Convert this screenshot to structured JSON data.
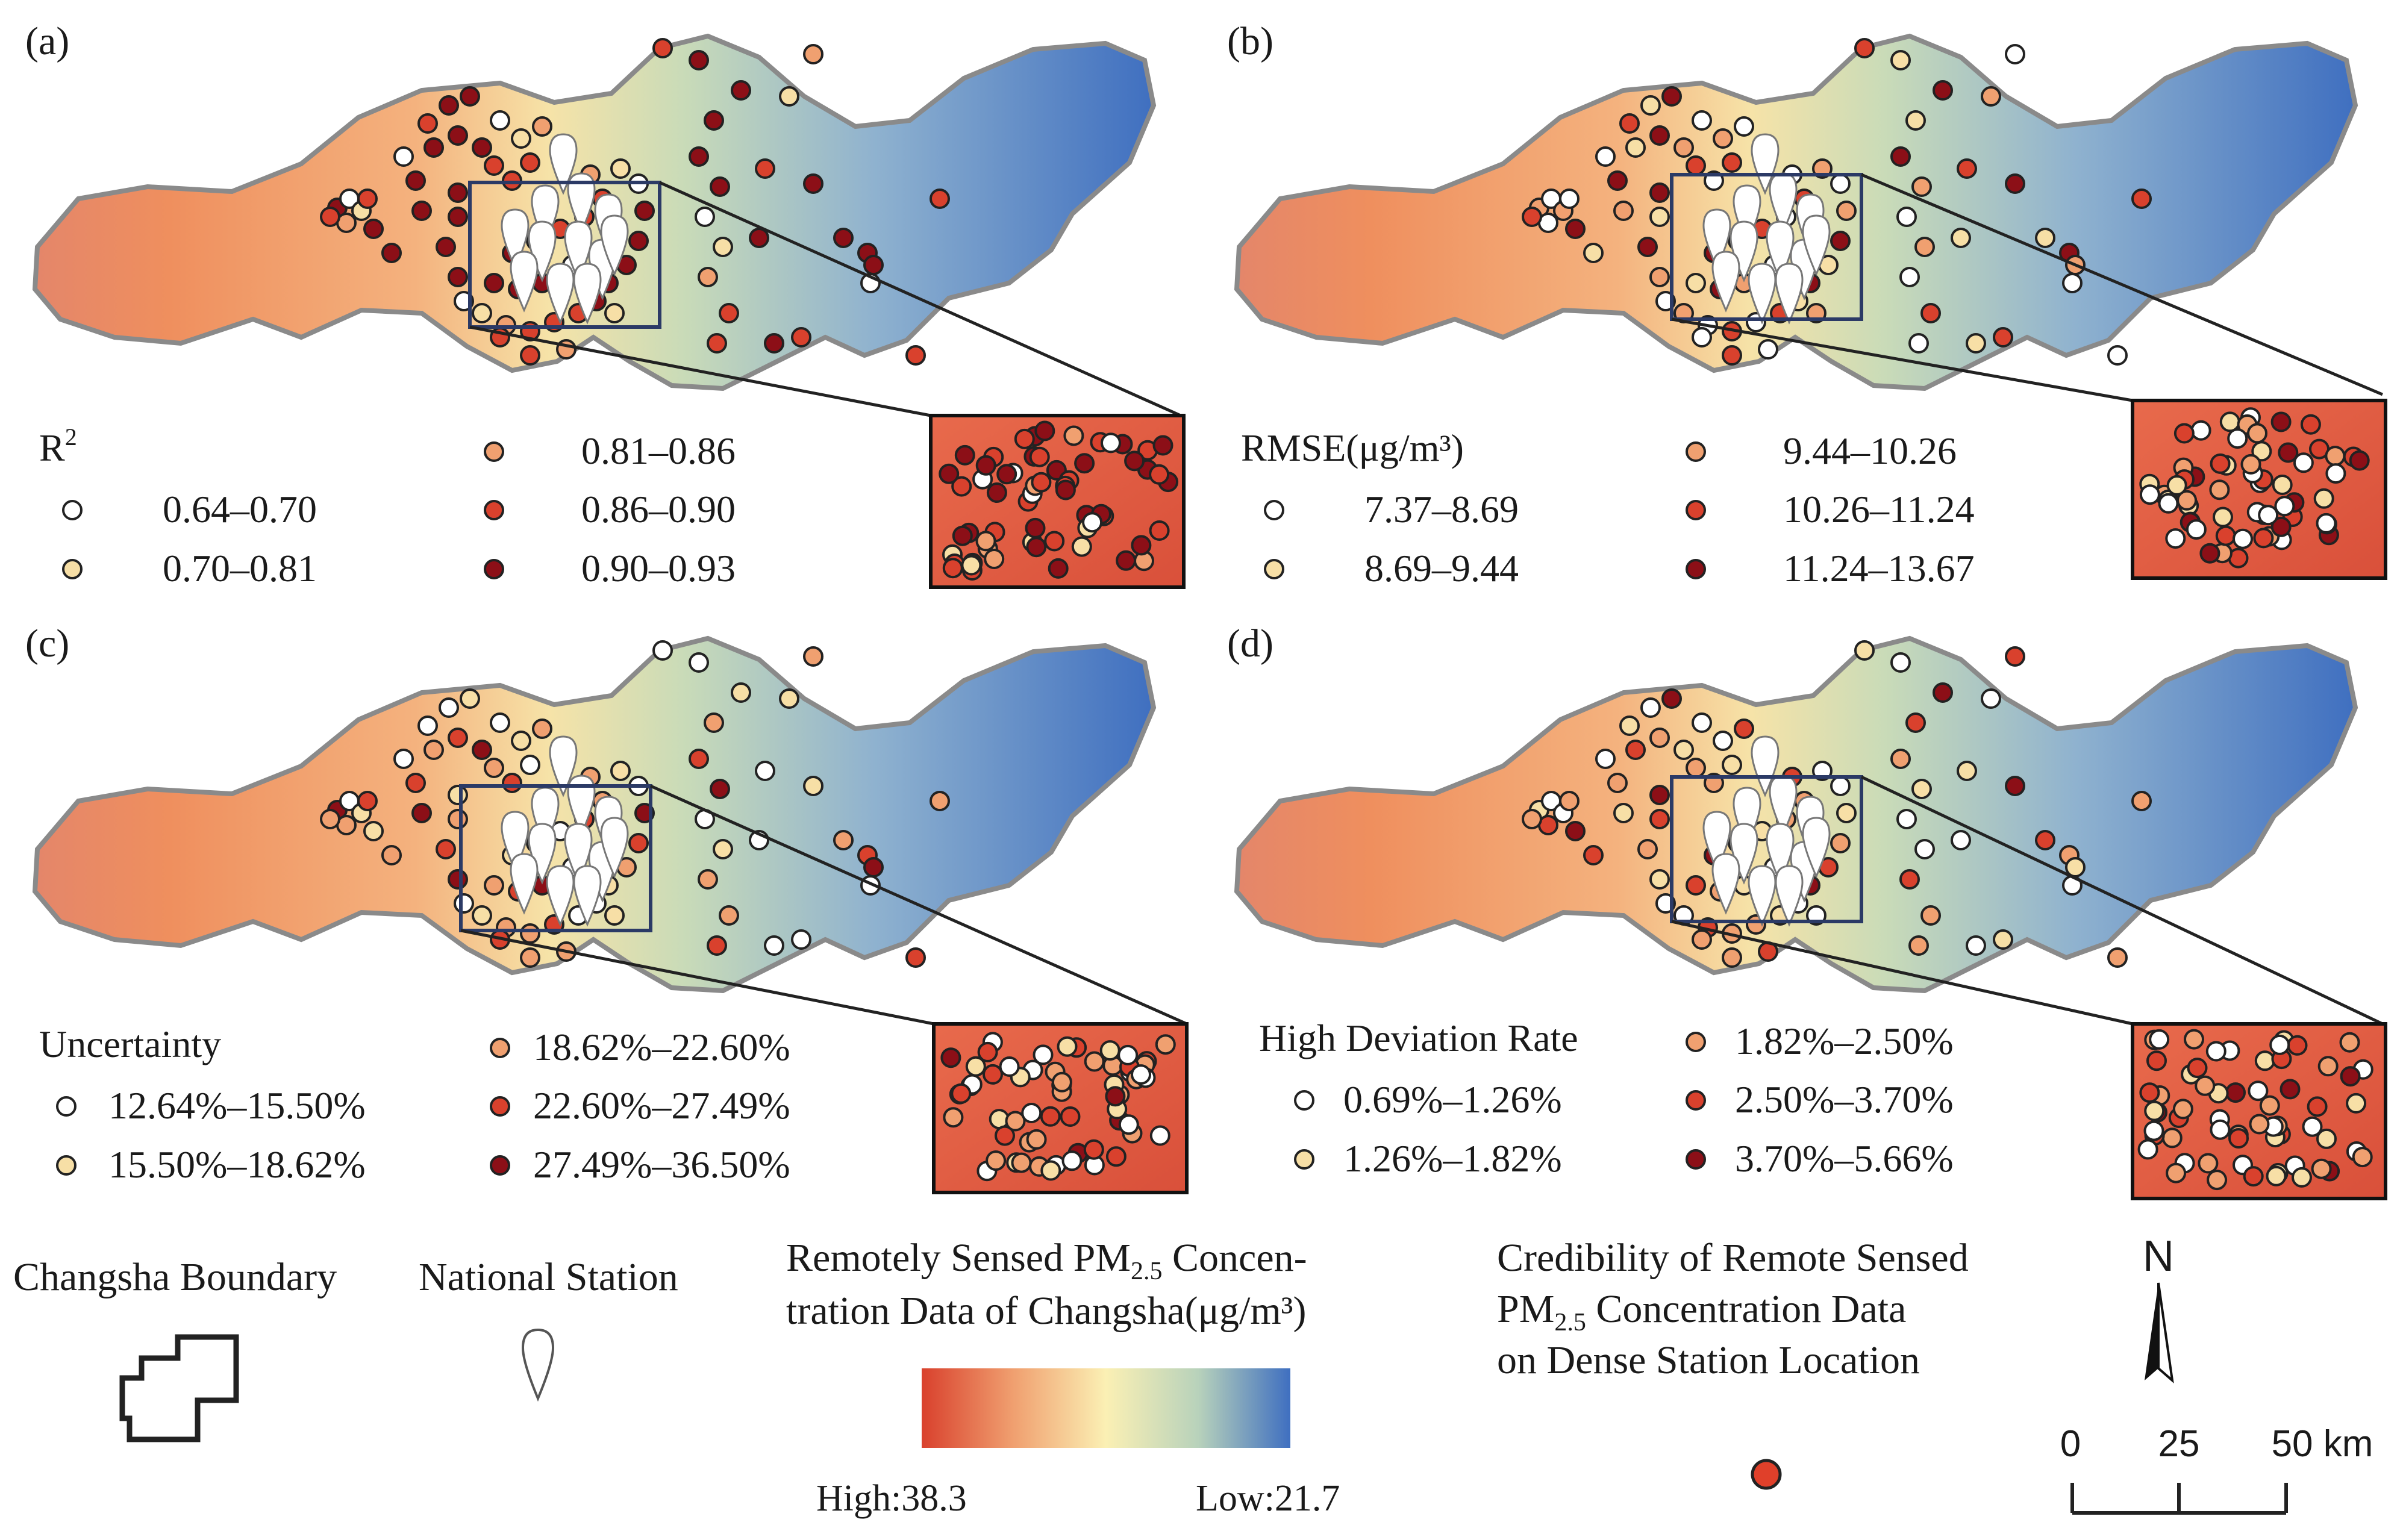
{
  "panels": [
    {
      "label": "(a)",
      "legend_title": "R",
      "legend_title_sup": "2",
      "classes": [
        {
          "label": "0.64–0.70",
          "color": "#ffffff"
        },
        {
          "label": "0.70–0.81",
          "color": "#f7dfa6"
        },
        {
          "label": "0.81–0.86",
          "color": "#f0a070"
        },
        {
          "label": "0.86–0.90",
          "color": "#d9412d"
        },
        {
          "label": "0.90–0.93",
          "color": "#8c0f17"
        }
      ]
    },
    {
      "label": "(b)",
      "legend_title": "RMSE(μg/m³)",
      "legend_title_sup": "",
      "classes": [
        {
          "label": "7.37–8.69",
          "color": "#ffffff"
        },
        {
          "label": "8.69–9.44",
          "color": "#f7dfa6"
        },
        {
          "label": "9.44–10.26",
          "color": "#f0a070"
        },
        {
          "label": "10.26–11.24",
          "color": "#d9412d"
        },
        {
          "label": "11.24–13.67",
          "color": "#8c0f17"
        }
      ]
    },
    {
      "label": "(c)",
      "legend_title": "Uncertainty",
      "legend_title_sup": "",
      "classes": [
        {
          "label": "12.64%–15.50%",
          "color": "#ffffff"
        },
        {
          "label": "15.50%–18.62%",
          "color": "#f7dfa6"
        },
        {
          "label": "18.62%–22.60%",
          "color": "#f0a070"
        },
        {
          "label": "22.60%–27.49%",
          "color": "#d9412d"
        },
        {
          "label": "27.49%–36.50%",
          "color": "#8c0f17"
        }
      ]
    },
    {
      "label": "(d)",
      "legend_title": "High Deviation Rate",
      "legend_title_sup": "",
      "classes": [
        {
          "label": "0.69%–1.26%",
          "color": "#ffffff"
        },
        {
          "label": "1.26%–1.82%",
          "color": "#f7dfa6"
        },
        {
          "label": "1.82%–2.50%",
          "color": "#f0a070"
        },
        {
          "label": "2.50%–3.70%",
          "color": "#d9412d"
        },
        {
          "label": "3.70%–5.66%",
          "color": "#8c0f17"
        }
      ]
    }
  ],
  "bottom_legend": {
    "boundary_label": "Changsha Boundary",
    "station_label": "National Station",
    "pm_title_line1_pre": "Remotely Sensed PM",
    "pm_title_line1_sub": "2.5",
    "pm_title_line1_post": " Concen-",
    "pm_title_line2": "tration Data of Changsha(μg/m³)",
    "pm_high": "High:38.3",
    "pm_low": "Low:21.7",
    "pm_high_value": 38.3,
    "pm_low_value": 21.7,
    "ramp_colors": [
      "#d9412d",
      "#f0a070",
      "#fbf0b4",
      "#b8d2bb",
      "#3f6fc0"
    ],
    "cred_line1": "Credibility of Remote Sensed",
    "cred_line2_pre": "PM",
    "cred_line2_sub": "2.5",
    "cred_line2_post": " Concentration Data",
    "cred_line3": "on Dense Station Location",
    "cred_symbol_color": "#e0402a"
  },
  "north_arrow": {
    "label": "N"
  },
  "scale_bar": {
    "ticks": [
      "0",
      "25",
      "50 km"
    ],
    "tick_values_km": [
      0,
      25,
      50
    ]
  }
}
